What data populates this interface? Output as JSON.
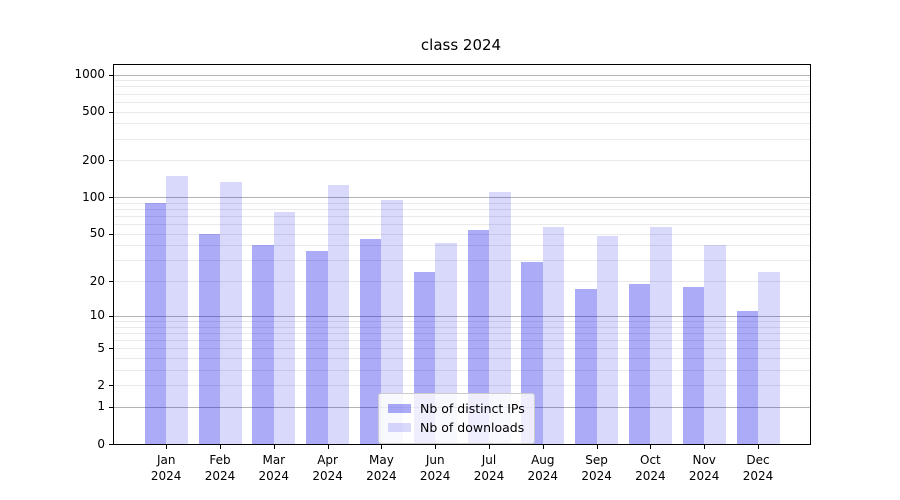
{
  "chart_data": {
    "type": "bar",
    "title": "class 2024",
    "xlabel": "",
    "ylabel": "",
    "categories": [
      "Jan",
      "Feb",
      "Mar",
      "Apr",
      "May",
      "Jun",
      "Jul",
      "Aug",
      "Sep",
      "Oct",
      "Nov",
      "Dec"
    ],
    "x_sub_label": "2024",
    "series": [
      {
        "name": "Nb of distinct IPs",
        "color": "rgba(0,0,235,0.33)",
        "values": [
          90,
          50,
          40,
          36,
          45,
          24,
          54,
          29,
          17,
          19,
          18,
          11
        ]
      },
      {
        "name": "Nb of downloads",
        "color": "rgba(0,0,235,0.15)",
        "values": [
          148,
          132,
          76,
          125,
          95,
          42,
          110,
          57,
          48,
          57,
          40,
          24
        ]
      }
    ],
    "y_scale": "log10(1+x) symlog-like, 0 at baseline",
    "y_ticks": [
      0,
      1,
      2,
      5,
      10,
      20,
      50,
      100,
      200,
      500,
      1000
    ],
    "y_major_gridlines": [
      1,
      10,
      100,
      1000
    ],
    "y_minor_gridlines": [
      2,
      3,
      4,
      5,
      6,
      7,
      8,
      9,
      20,
      30,
      40,
      50,
      60,
      70,
      80,
      90,
      200,
      300,
      400,
      500,
      600,
      700,
      800,
      900
    ],
    "ylim": [
      0,
      1290
    ],
    "grid": "major and minor horizontal gridlines",
    "legend_position": "lower center inside plot",
    "colors": {
      "major_grid": "#b3b3b3",
      "minor_grid": "#e9e9e9",
      "axis": "#000000",
      "legend_border": "#cccccc",
      "legend_bg": "rgba(255,255,255,0.8)"
    }
  }
}
